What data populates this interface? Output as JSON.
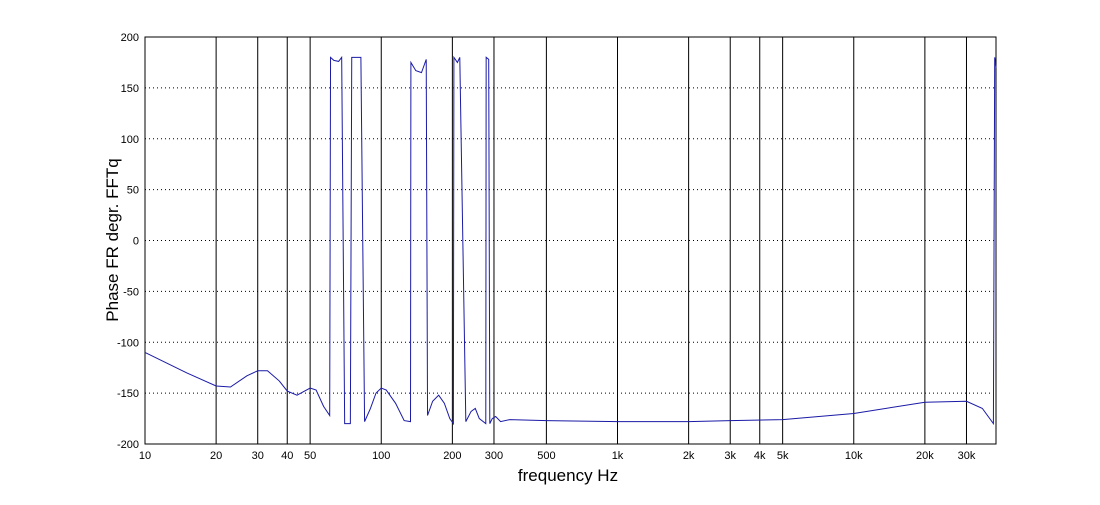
{
  "chart_data": {
    "type": "line",
    "xscale": "log",
    "grid": true,
    "color": "#1a1aa6",
    "xlabel": "frequency   Hz",
    "ylabel": "Phase FR degr.   FFTq",
    "xlim": [
      10,
      40000
    ],
    "ylim": [
      -200,
      200
    ],
    "xticks": [
      10,
      20,
      30,
      40,
      50,
      100,
      200,
      300,
      500,
      {
        "value": 1000,
        "label": "1k"
      },
      {
        "value": 2000,
        "label": "2k"
      },
      {
        "value": 3000,
        "label": "3k"
      },
      {
        "value": 4000,
        "label": "4k"
      },
      {
        "value": 5000,
        "label": "5k"
      },
      {
        "value": 10000,
        "label": "10k"
      },
      {
        "value": 20000,
        "label": "20k"
      },
      {
        "value": 30000,
        "label": "30k"
      }
    ],
    "yticks": [
      -200,
      -150,
      -100,
      -50,
      0,
      50,
      100,
      150,
      200
    ],
    "x": [
      10,
      15,
      20,
      23,
      27,
      30,
      33,
      37,
      40,
      44,
      50,
      53,
      57,
      60.5,
      61,
      63,
      66,
      68,
      70,
      74,
      75,
      82,
      85,
      90,
      95,
      100,
      105,
      115,
      125,
      133,
      133.5,
      140,
      148,
      155,
      157,
      165,
      175,
      185,
      195,
      202,
      203,
      210,
      215,
      228,
      240,
      250,
      260,
      277,
      278,
      285,
      288,
      295,
      305,
      320,
      350,
      500,
      1000,
      2000,
      3000,
      5000,
      10000,
      20000,
      30000,
      35000,
      39000,
      39500,
      40000
    ],
    "values": [
      -110,
      -130,
      -143,
      -144,
      -133,
      -128,
      -128,
      -138,
      -148,
      -152,
      -145,
      -147,
      -163,
      -172,
      180,
      177,
      176,
      180,
      -180,
      -180,
      180,
      180,
      -178,
      -165,
      -150,
      -145,
      -147,
      -160,
      -177,
      -178,
      175,
      167,
      165,
      178,
      -172,
      -158,
      -152,
      -160,
      -175,
      -180,
      180,
      175,
      180,
      -178,
      -168,
      -165,
      -175,
      -180,
      180,
      178,
      -180,
      -175,
      -173,
      -178,
      -176,
      -177,
      -178,
      -178,
      -177,
      -176,
      -170,
      -159,
      -158,
      -165,
      -180,
      180,
      170
    ]
  }
}
